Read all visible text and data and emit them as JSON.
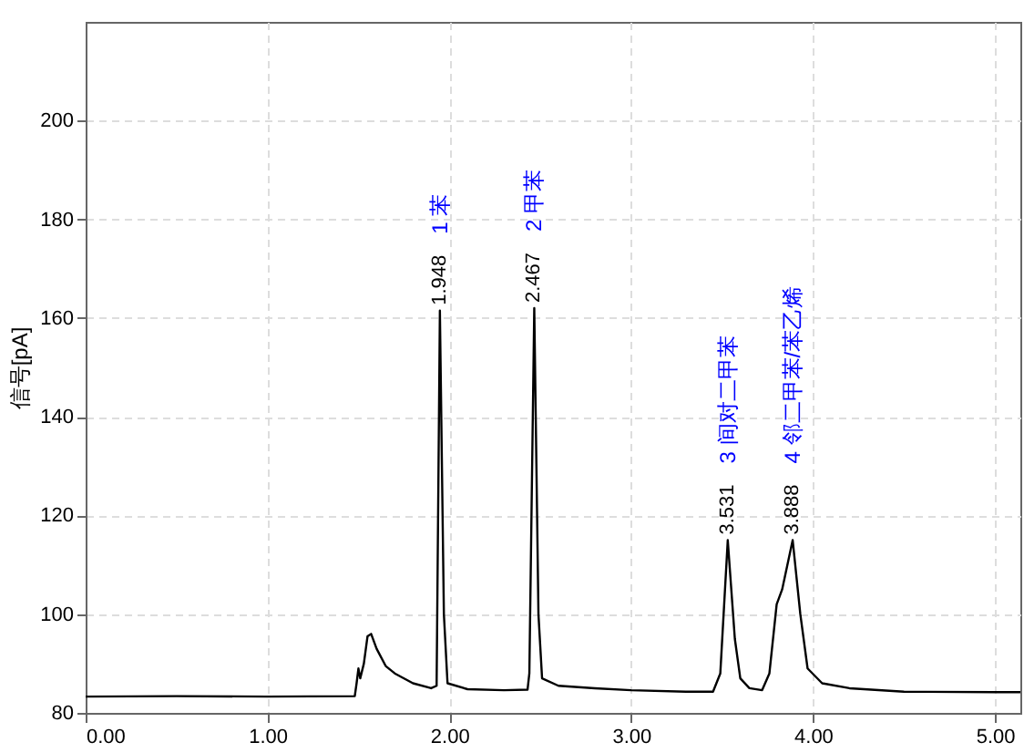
{
  "chart_data": {
    "type": "line",
    "ylabel": "信号[pA]",
    "xlim": [
      0,
      5.14
    ],
    "ylim": [
      80,
      220
    ],
    "xticks": [
      {
        "value": 0,
        "label": "0.00"
      },
      {
        "value": 1,
        "label": "1.00"
      },
      {
        "value": 2,
        "label": "2.00"
      },
      {
        "value": 3,
        "label": "3.00"
      },
      {
        "value": 4,
        "label": "4.00"
      },
      {
        "value": 5,
        "label": "5.00"
      }
    ],
    "yticks": [
      80,
      100,
      120,
      140,
      160,
      180,
      200
    ],
    "grid": true,
    "line_style": "solid",
    "series": [
      {
        "color": "#000000",
        "x": [
          0,
          0.5,
          1.0,
          1.48,
          1.49,
          1.5,
          1.51,
          1.53,
          1.55,
          1.57,
          1.6,
          1.65,
          1.7,
          1.8,
          1.9,
          1.93,
          1.948,
          1.97,
          1.99,
          2.1,
          2.3,
          2.43,
          2.44,
          2.467,
          2.49,
          2.51,
          2.6,
          2.8,
          3.0,
          3.3,
          3.45,
          3.49,
          3.531,
          3.57,
          3.6,
          3.65,
          3.72,
          3.76,
          3.8,
          3.83,
          3.888,
          3.93,
          3.97,
          4.05,
          4.2,
          4.5,
          5.0,
          5.14
        ],
        "values": [
          83.3,
          83.4,
          83.3,
          83.4,
          86,
          89,
          87,
          90,
          95.5,
          96,
          93,
          89.5,
          88,
          86,
          85,
          85.5,
          161.5,
          100,
          86,
          84.8,
          84.6,
          84.7,
          88,
          162,
          100,
          87,
          85.5,
          85,
          84.6,
          84.3,
          84.3,
          88,
          115,
          95,
          87,
          85,
          84.6,
          88,
          102,
          105,
          115,
          100,
          89,
          86,
          85,
          84.3,
          84.2,
          84.2
        ]
      }
    ],
    "annotations": [
      {
        "text": "1.948",
        "x": 1.948,
        "y": 161.5
      },
      "1  苯",
      {
        "text": "2.467",
        "x": 2.467,
        "y": 162
      },
      "2  甲苯",
      {
        "text": "3.531",
        "x": 3.531,
        "y": 115
      },
      "3  间对二甲苯",
      {
        "text": "3.888",
        "x": 3.888,
        "y": 115
      },
      "4  邻二甲苯/苯乙烯"
    ]
  }
}
